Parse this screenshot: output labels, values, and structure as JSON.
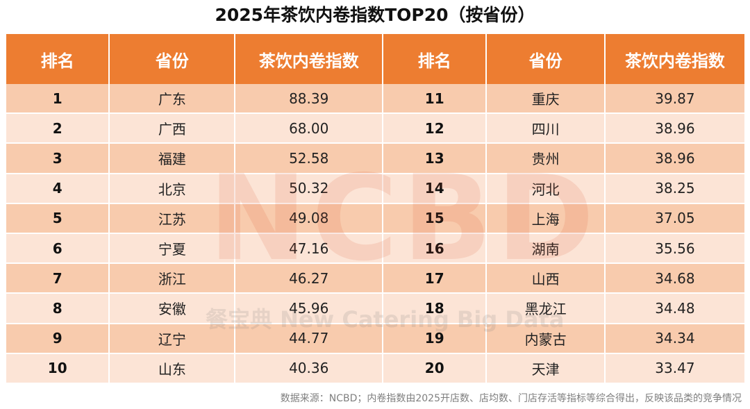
{
  "chart_data": {
    "type": "table",
    "title": "2025年茶饮内卷指数TOP20（按省份）",
    "columns": [
      "排名",
      "省份",
      "茶饮内卷指数",
      "排名",
      "省份",
      "茶饮内卷指数"
    ],
    "rows": [
      {
        "rank": "1",
        "province": "广东",
        "index": "88.39"
      },
      {
        "rank": "2",
        "province": "广西",
        "index": "68.00"
      },
      {
        "rank": "3",
        "province": "福建",
        "index": "52.58"
      },
      {
        "rank": "4",
        "province": "北京",
        "index": "50.32"
      },
      {
        "rank": "5",
        "province": "江苏",
        "index": "49.08"
      },
      {
        "rank": "6",
        "province": "宁夏",
        "index": "47.16"
      },
      {
        "rank": "7",
        "province": "浙江",
        "index": "46.27"
      },
      {
        "rank": "8",
        "province": "安徽",
        "index": "45.96"
      },
      {
        "rank": "9",
        "province": "辽宁",
        "index": "44.77"
      },
      {
        "rank": "10",
        "province": "山东",
        "index": "40.36"
      },
      {
        "rank": "11",
        "province": "重庆",
        "index": "39.87"
      },
      {
        "rank": "12",
        "province": "四川",
        "index": "38.96"
      },
      {
        "rank": "13",
        "province": "贵州",
        "index": "38.96"
      },
      {
        "rank": "14",
        "province": "河北",
        "index": "38.25"
      },
      {
        "rank": "15",
        "province": "上海",
        "index": "37.05"
      },
      {
        "rank": "16",
        "province": "湖南",
        "index": "35.56"
      },
      {
        "rank": "17",
        "province": "山西",
        "index": "34.68"
      },
      {
        "rank": "18",
        "province": "黑龙江",
        "index": "34.48"
      },
      {
        "rank": "19",
        "province": "内蒙古",
        "index": "34.34"
      },
      {
        "rank": "20",
        "province": "天津",
        "index": "33.47"
      }
    ]
  },
  "watermark": {
    "main": "NCBD",
    "sub": "餐宝典 New Catering Big Data"
  },
  "footnote": "数据来源：NCBD；内卷指数由2025开店数、店均数、门店存活等指标等综合得出，反映该品类的竞争情况",
  "colors": {
    "header": "#ED7D31",
    "row_dark": "#F8CBAD",
    "row_light": "#FCE4D6"
  }
}
